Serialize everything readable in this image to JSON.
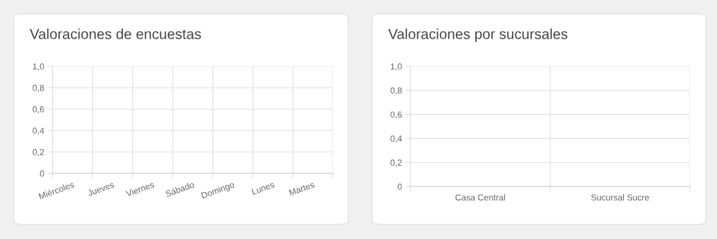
{
  "chart_data": [
    {
      "type": "bar",
      "title": "Valoraciones de encuestas",
      "categories": [
        "Miércoles",
        "Jueves",
        "Viernes",
        "Sábado",
        "Domingo",
        "Lunes",
        "Martes"
      ],
      "values": [
        null,
        null,
        null,
        null,
        null,
        null,
        null
      ],
      "ylim": [
        0,
        1
      ],
      "yticks": [
        0,
        {
          "value": 0.2,
          "label": "0,2"
        },
        {
          "value": 0.4,
          "label": "0,4"
        },
        {
          "value": 0.6,
          "label": "0,6"
        },
        {
          "value": 0.8,
          "label": "0,8"
        },
        {
          "value": 1,
          "label": "1,0"
        }
      ],
      "grid": true
    },
    {
      "type": "bar",
      "title": "Valoraciones por sucursales",
      "categories": [
        "Casa Central",
        "Sucursal Sucre"
      ],
      "values": [
        null,
        null
      ],
      "ylim": [
        0,
        1
      ],
      "yticks": [
        0,
        {
          "value": 0.2,
          "label": "0,2"
        },
        {
          "value": 0.4,
          "label": "0,4"
        },
        {
          "value": 0.6,
          "label": "0,6"
        },
        {
          "value": 0.8,
          "label": "0,8"
        },
        {
          "value": 1,
          "label": "1,0"
        }
      ],
      "grid": true
    }
  ]
}
